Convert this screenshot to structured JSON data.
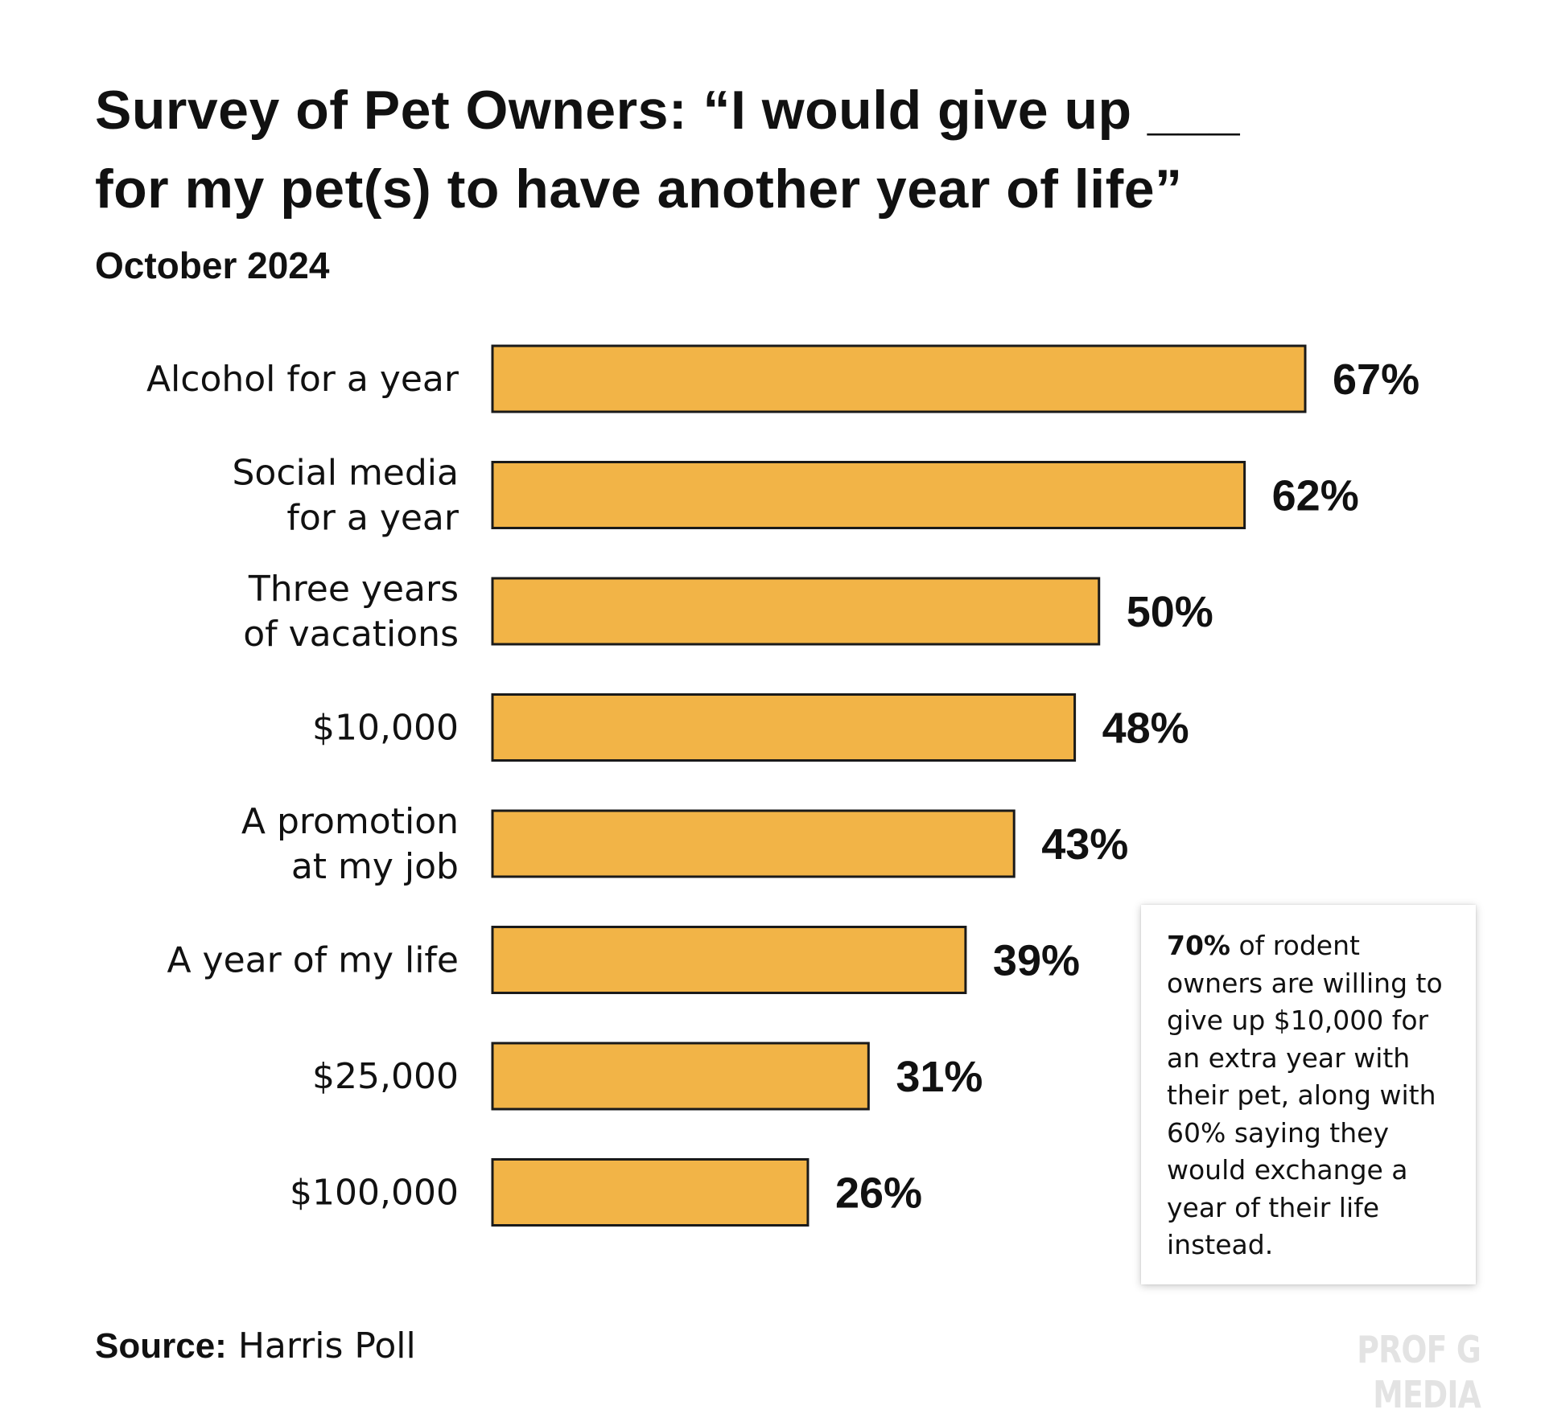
{
  "title": {
    "line1": "Survey of Pet Owners: “I would give up ___",
    "line2": "for my pet(s) to have another year of life”"
  },
  "subtitle": "October 2024",
  "chart_data": {
    "type": "bar",
    "orientation": "horizontal",
    "categories": [
      [
        "Alcohol for a year"
      ],
      [
        "Social media",
        "for a year"
      ],
      [
        "Three years",
        "of vacations"
      ],
      [
        "$10,000"
      ],
      [
        "A promotion",
        "at my job"
      ],
      [
        "A year of my life"
      ],
      [
        "$25,000"
      ],
      [
        "$100,000"
      ]
    ],
    "values": [
      67,
      62,
      50,
      48,
      43,
      39,
      31,
      26
    ],
    "value_labels": [
      "67%",
      "62%",
      "50%",
      "48%",
      "43%",
      "39%",
      "31%",
      "26%"
    ],
    "title": "Survey of Pet Owners: “I would give up ___ for my pet(s) to have another year of life”",
    "subtitle": "October 2024",
    "xlabel": "",
    "ylabel": "",
    "xlim": [
      0,
      67
    ],
    "grid": false,
    "legend": "none",
    "bar_color": "#f2b447",
    "bar_outline_color": "#1a1a1a"
  },
  "note": {
    "highlight": "70%",
    "text": " of rodent owners are willing to give up $10,000 for an extra year with their pet, along with 60% saying they would exchange a year of their life instead."
  },
  "source": {
    "label": "Source:",
    "text": " Harris Poll"
  },
  "watermark": "PROF G MEDIA"
}
